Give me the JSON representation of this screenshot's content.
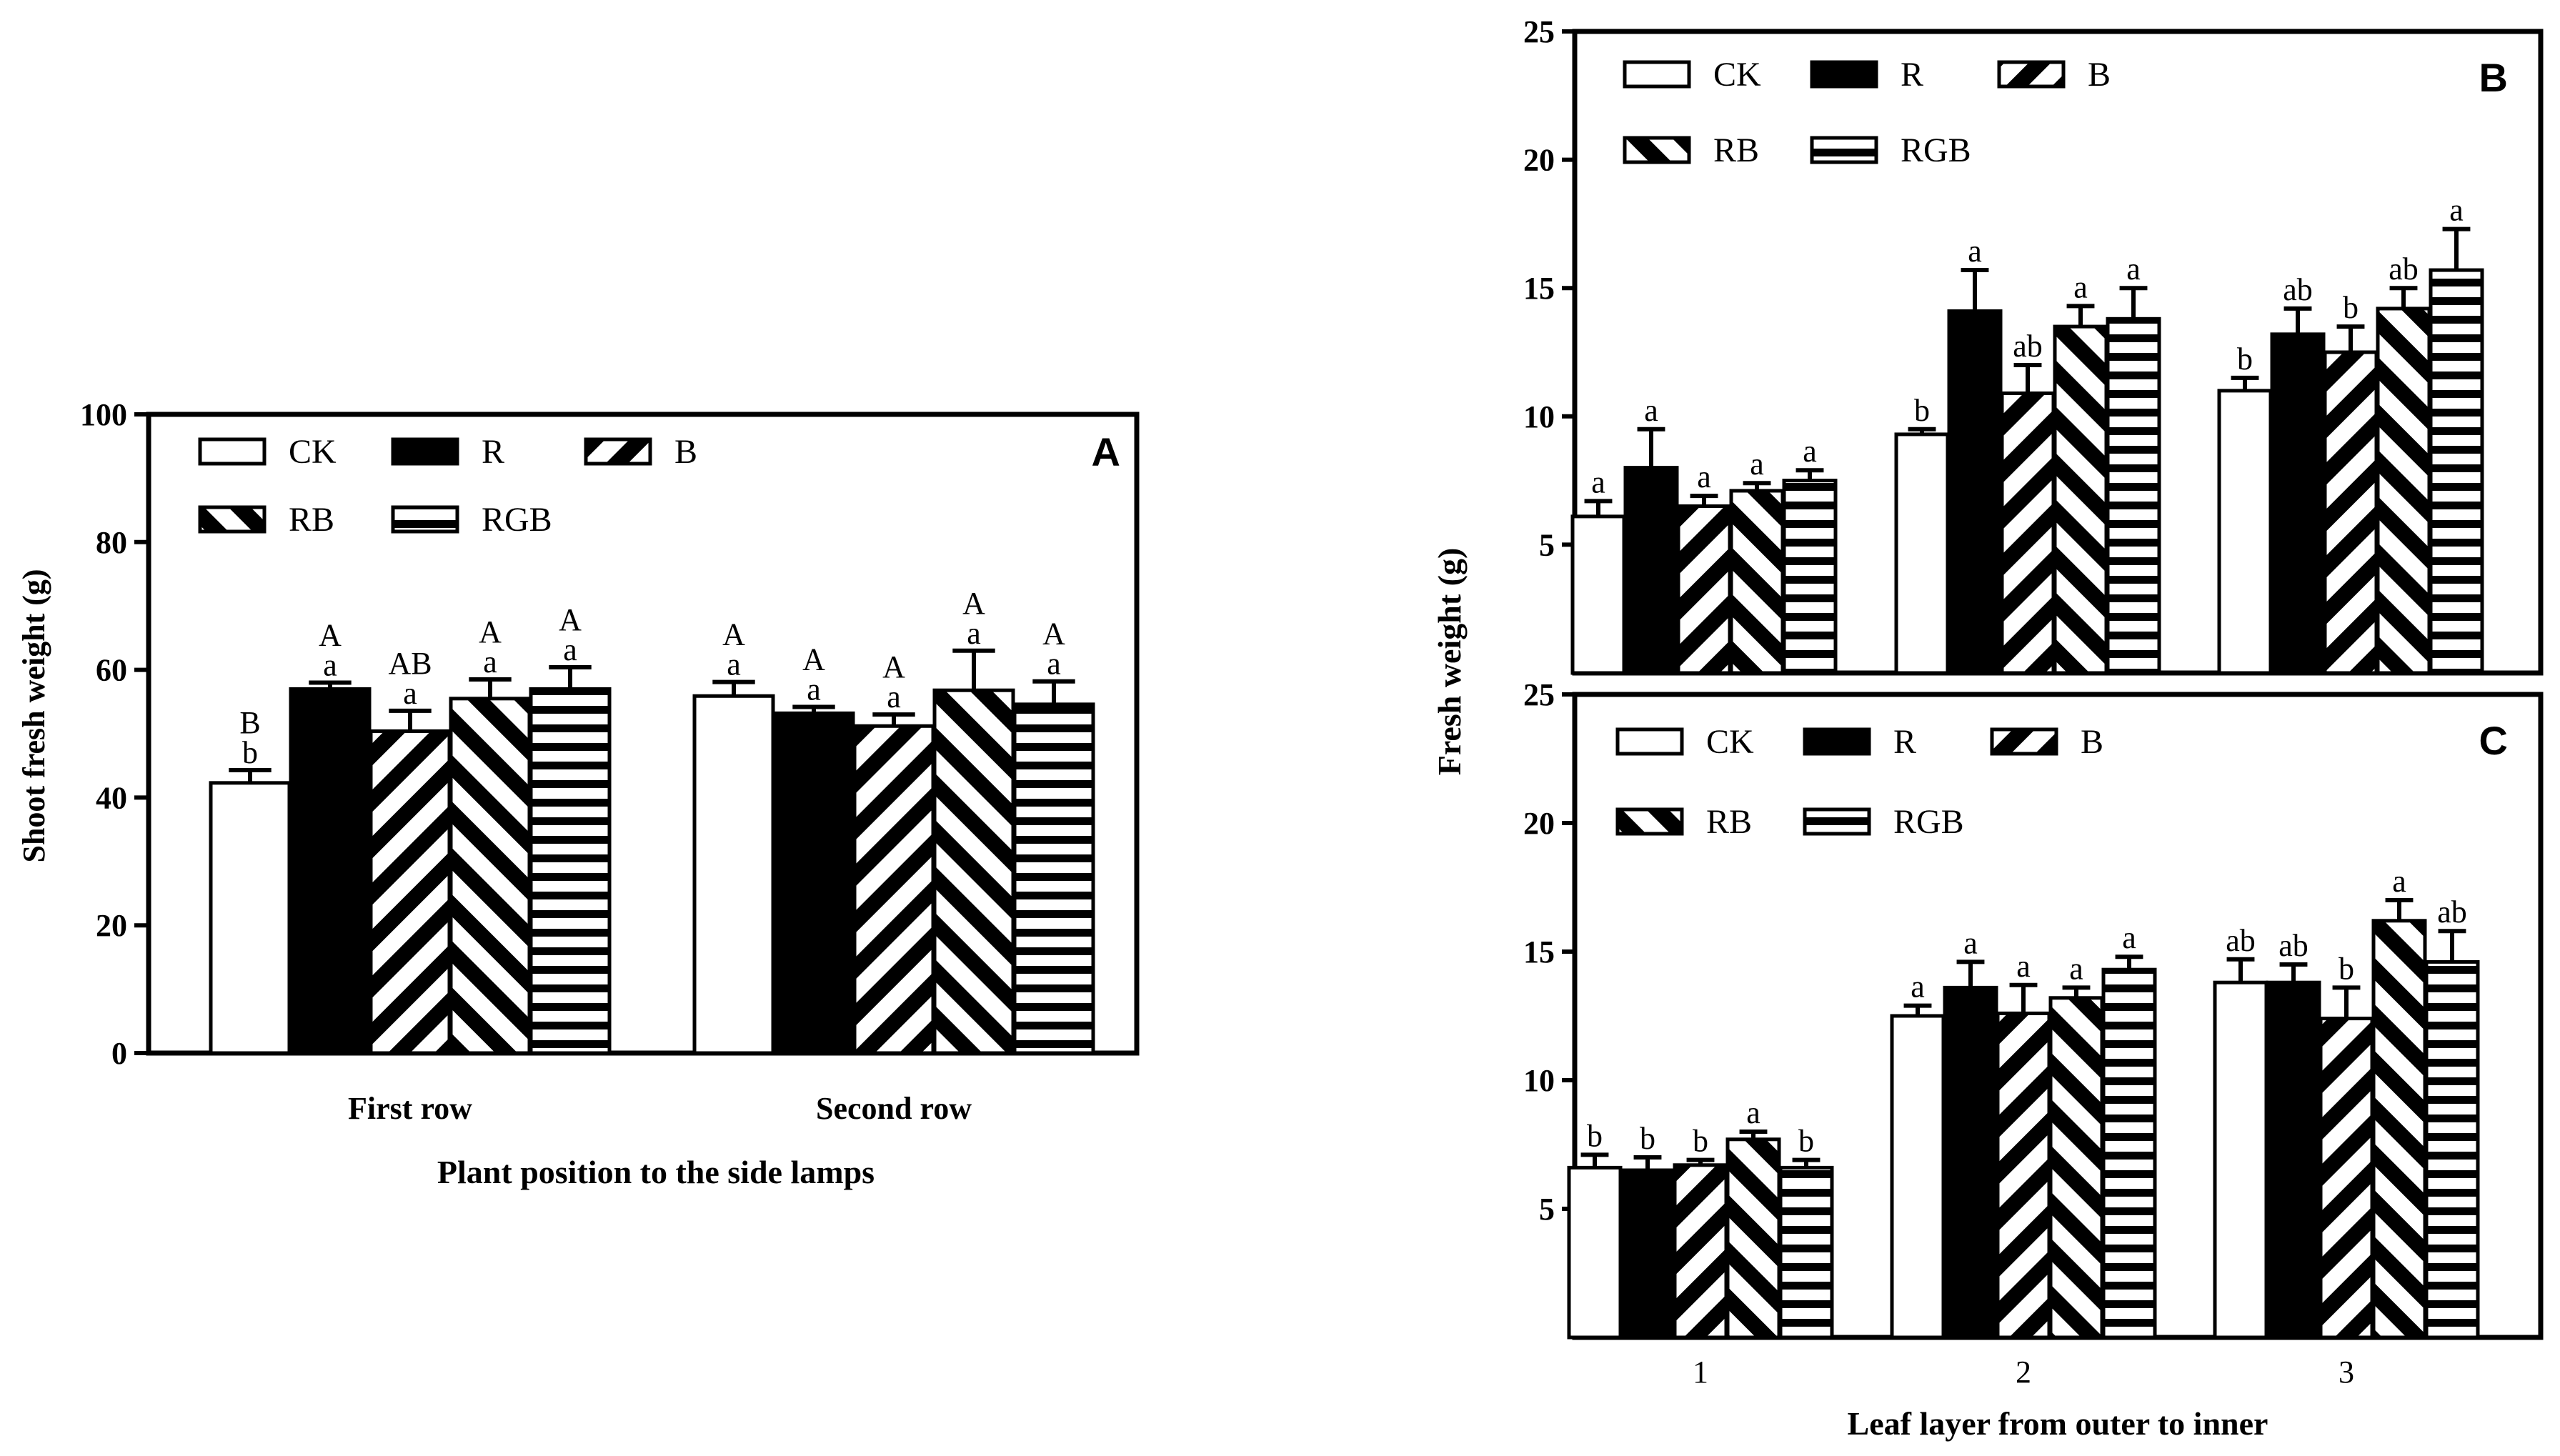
{
  "chart_data": [
    {
      "type": "bar",
      "panel_label": "A",
      "title": "",
      "xlabel": "Plant position to the side lamps",
      "ylabel": "Shoot fresh weight (g)",
      "ylim": [
        0,
        100
      ],
      "yticks": [
        "0",
        "20",
        "40",
        "60",
        "80",
        "100"
      ],
      "categories": [
        "First row",
        "Second row"
      ],
      "legend_position": "top-left",
      "series": [
        {
          "name": "CK",
          "pattern": "white",
          "values": [
            42.3,
            55.9
          ],
          "errors": [
            2.0,
            2.2
          ],
          "letters_upper": [
            "B",
            "A"
          ],
          "letters_lower": [
            "b",
            "a"
          ]
        },
        {
          "name": "R",
          "pattern": "black",
          "values": [
            57.0,
            53.2
          ],
          "errors": [
            1.0,
            1.0
          ],
          "letters_upper": [
            "A",
            "A"
          ],
          "letters_lower": [
            "a",
            "a"
          ]
        },
        {
          "name": "B",
          "pattern": "diag-right",
          "values": [
            50.4,
            51.2
          ],
          "errors": [
            3.2,
            1.8
          ],
          "letters_upper": [
            "AB",
            "A"
          ],
          "letters_lower": [
            "a",
            "a"
          ]
        },
        {
          "name": "RB",
          "pattern": "diag-left",
          "values": [
            55.5,
            56.8
          ],
          "errors": [
            3.0,
            6.2
          ],
          "letters_upper": [
            "A",
            "A"
          ],
          "letters_lower": [
            "a",
            "a"
          ]
        },
        {
          "name": "RGB",
          "pattern": "horizontal",
          "values": [
            57.0,
            54.6
          ],
          "errors": [
            3.4,
            3.6
          ],
          "letters_upper": [
            "A",
            "A"
          ],
          "letters_lower": [
            "a",
            "a"
          ]
        }
      ]
    },
    {
      "type": "bar",
      "panel_label": "B",
      "title": "",
      "xlabel": "",
      "ylabel": "Fresh weight (g)",
      "ylim": [
        0,
        25
      ],
      "yticks": [
        "5",
        "10",
        "15",
        "20",
        "25"
      ],
      "categories": [
        "1",
        "2",
        "3"
      ],
      "legend_position": "top-left",
      "series": [
        {
          "name": "CK",
          "pattern": "white",
          "values": [
            6.1,
            9.3,
            11.0
          ],
          "errors": [
            0.6,
            0.2,
            0.5
          ],
          "letters": [
            "a",
            "b",
            "b"
          ]
        },
        {
          "name": "R",
          "pattern": "black",
          "values": [
            8.0,
            14.1,
            13.2
          ],
          "errors": [
            1.5,
            1.6,
            1.0
          ],
          "letters": [
            "a",
            "a",
            "ab"
          ]
        },
        {
          "name": "B",
          "pattern": "diag-right",
          "values": [
            6.5,
            10.9,
            12.5
          ],
          "errors": [
            0.4,
            1.1,
            1.0
          ],
          "letters": [
            "a",
            "ab",
            "b"
          ]
        },
        {
          "name": "RB",
          "pattern": "diag-left",
          "values": [
            7.1,
            13.5,
            14.2
          ],
          "errors": [
            0.3,
            0.8,
            0.8
          ],
          "letters": [
            "a",
            "a",
            "ab"
          ]
        },
        {
          "name": "RGB",
          "pattern": "horizontal",
          "values": [
            7.5,
            13.8,
            15.7
          ],
          "errors": [
            0.4,
            1.2,
            1.6
          ],
          "letters": [
            "a",
            "a",
            "a"
          ]
        }
      ]
    },
    {
      "type": "bar",
      "panel_label": "C",
      "title": "",
      "xlabel": "Leaf layer from outer to inner",
      "ylabel": "Fresh weight (g)",
      "ylim": [
        0,
        25
      ],
      "yticks": [
        "5",
        "10",
        "15",
        "20",
        "25"
      ],
      "categories": [
        "1",
        "2",
        "3"
      ],
      "legend_position": "top-left",
      "series": [
        {
          "name": "CK",
          "pattern": "white",
          "values": [
            6.6,
            12.5,
            13.8
          ],
          "errors": [
            0.5,
            0.4,
            0.9
          ],
          "letters": [
            "b",
            "a",
            "ab"
          ]
        },
        {
          "name": "R",
          "pattern": "black",
          "values": [
            6.5,
            13.6,
            13.8
          ],
          "errors": [
            0.5,
            1.0,
            0.7
          ],
          "letters": [
            "b",
            "a",
            "ab"
          ]
        },
        {
          "name": "B",
          "pattern": "diag-right",
          "values": [
            6.7,
            12.6,
            12.4
          ],
          "errors": [
            0.2,
            1.1,
            1.2
          ],
          "letters": [
            "b",
            "a",
            "b"
          ]
        },
        {
          "name": "RB",
          "pattern": "diag-left",
          "values": [
            7.7,
            13.2,
            16.2
          ],
          "errors": [
            0.3,
            0.4,
            0.8
          ],
          "letters": [
            "a",
            "a",
            "a"
          ]
        },
        {
          "name": "RGB",
          "pattern": "horizontal",
          "values": [
            6.6,
            14.3,
            14.6
          ],
          "errors": [
            0.3,
            0.5,
            1.2
          ],
          "letters": [
            "b",
            "a",
            "ab"
          ]
        }
      ]
    }
  ],
  "shared": {
    "right_ylabel": "Fresh weight (g)"
  },
  "colors": {
    "ink": "#000000",
    "background": "#ffffff"
  }
}
